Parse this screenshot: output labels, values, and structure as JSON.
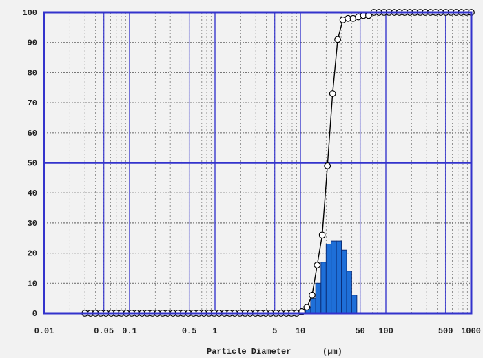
{
  "chart_data": {
    "type": "bar",
    "title": "",
    "xlabel": "Particle Diameter",
    "xunit": "(μm)",
    "ylabel": "",
    "x_scale": "log",
    "xlim": [
      0.01,
      1000
    ],
    "ylim": [
      0,
      100
    ],
    "grid": true,
    "legend": "none",
    "x_tick_labels": [
      "0.01",
      "0.05",
      "0.1",
      "0.5",
      "1",
      "5",
      "10",
      "50",
      "100",
      "500",
      "1000"
    ],
    "x_tick_values": [
      0.01,
      0.05,
      0.1,
      0.5,
      1,
      5,
      10,
      50,
      100,
      500,
      1000
    ],
    "y_tick_labels": [
      "0",
      "10",
      "20",
      "30",
      "40",
      "50",
      "60",
      "70",
      "80",
      "90",
      "100"
    ],
    "y_tick_values": [
      0,
      10,
      20,
      30,
      40,
      50,
      60,
      70,
      80,
      90,
      100
    ],
    "colors": {
      "bars": "#1e6fd8",
      "frame": "#3333cc",
      "curve": "#000000",
      "grid": "#777777",
      "background": "#f2f2f2"
    },
    "series": [
      {
        "type": "bar",
        "bins": [
          [
            11.5,
            13.2,
            2
          ],
          [
            13.2,
            15.1,
            5
          ],
          [
            15.1,
            17.4,
            10
          ],
          [
            17.4,
            20.0,
            17
          ],
          [
            20.0,
            22.9,
            23
          ],
          [
            22.9,
            26.3,
            24
          ],
          [
            26.3,
            30.2,
            24
          ],
          [
            30.2,
            34.7,
            21
          ],
          [
            34.7,
            39.8,
            14
          ],
          [
            39.8,
            45.7,
            6
          ]
        ]
      },
      {
        "type": "line",
        "marker": "circle",
        "x": [
          0.03,
          0.035,
          0.04,
          0.046,
          0.053,
          0.061,
          0.07,
          0.08,
          0.092,
          0.106,
          0.122,
          0.14,
          0.161,
          0.185,
          0.212,
          0.244,
          0.28,
          0.322,
          0.37,
          0.425,
          0.489,
          0.561,
          0.645,
          0.741,
          0.851,
          0.978,
          1.12,
          1.29,
          1.48,
          1.7,
          1.96,
          2.25,
          2.58,
          2.97,
          3.41,
          3.92,
          4.5,
          5.17,
          5.94,
          6.83,
          7.84,
          9.01,
          10.4,
          11.9,
          13.7,
          15.7,
          18.0,
          20.7,
          23.8,
          27.3,
          31.4,
          36.1,
          41.4,
          47.6,
          54.7,
          62.8,
          72.2,
          82.9,
          95.3,
          109,
          126,
          144,
          166,
          191,
          219,
          252,
          289,
          333,
          382,
          439,
          504,
          579,
          665,
          764,
          878,
          1000
        ],
        "y": [
          0,
          0,
          0,
          0,
          0,
          0,
          0,
          0,
          0,
          0,
          0,
          0,
          0,
          0,
          0,
          0,
          0,
          0,
          0,
          0,
          0,
          0,
          0,
          0,
          0,
          0,
          0,
          0,
          0,
          0,
          0,
          0,
          0,
          0,
          0,
          0,
          0,
          0,
          0,
          0,
          0,
          0,
          0.5,
          2,
          6,
          16,
          26,
          49,
          73,
          91,
          97.5,
          98,
          98,
          98.5,
          99,
          99,
          100,
          100,
          100,
          100,
          100,
          100,
          100,
          100,
          100,
          100,
          100,
          100,
          100,
          100,
          100,
          100,
          100,
          100,
          100,
          100
        ]
      }
    ]
  }
}
